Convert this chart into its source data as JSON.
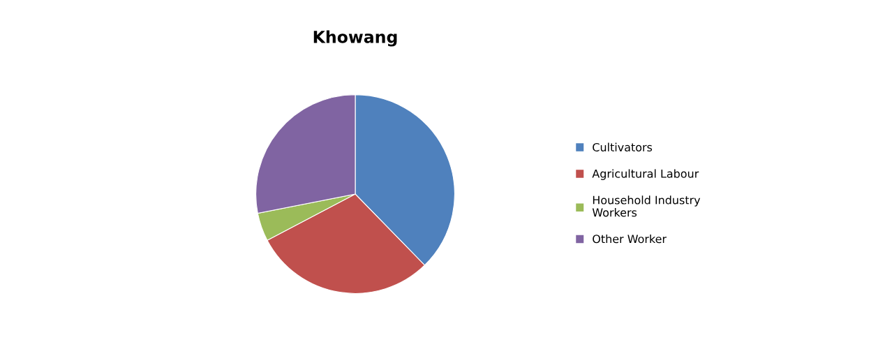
{
  "chart_data": {
    "type": "pie",
    "title": "Khowang",
    "categories": [
      "Cultivators",
      "Agricultural Labour",
      "Household Industry\nWorkers",
      "Other Worker"
    ],
    "values": [
      37.7,
      29.6,
      4.6,
      28.1
    ],
    "colors": [
      "#4f81bd",
      "#c0504d",
      "#9bbb59",
      "#8064a2"
    ],
    "legend": "right"
  }
}
